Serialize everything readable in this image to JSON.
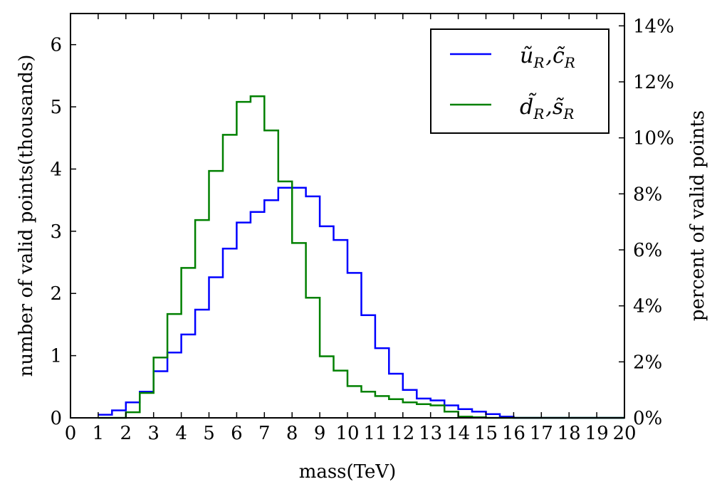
{
  "chart_data": {
    "type": "line",
    "style": "step-histogram",
    "title": "",
    "xlabel": "mass(TeV)",
    "ylabel": "number of valid points(thousands)",
    "ylabel_right": "percent of valid points",
    "xlim": [
      0,
      20
    ],
    "ylim": [
      0,
      6.5
    ],
    "ylim_right_percent": [
      0,
      14.44
    ],
    "x_ticks": [
      "0",
      "1",
      "2",
      "3",
      "4",
      "5",
      "6",
      "7",
      "8",
      "9",
      "10",
      "11",
      "12",
      "13",
      "14",
      "15",
      "16",
      "17",
      "18",
      "19",
      "20"
    ],
    "y_ticks": [
      "0",
      "1",
      "2",
      "3",
      "4",
      "5",
      "6"
    ],
    "y_ticks_right": [
      "0%",
      "2%",
      "4%",
      "6%",
      "8%",
      "10%",
      "12%",
      "14%"
    ],
    "grid": false,
    "legend_position": "top-right",
    "bin_edges": [
      1,
      1.5,
      2,
      2.5,
      3,
      3.5,
      4,
      4.5,
      5,
      5.5,
      6,
      6.5,
      7,
      7.5,
      8,
      8.5,
      9,
      9.5,
      10,
      10.5,
      11,
      11.5,
      12,
      12.5,
      13,
      13.5,
      14,
      14.5,
      15,
      15.5,
      16,
      16.5,
      17,
      17.5,
      18,
      18.5,
      19,
      19.5,
      20
    ],
    "series": [
      {
        "name": "ũR,c̃R",
        "legend_main": "ũ",
        "legend_sub": "R",
        "legend_sep": ",",
        "legend_main2": "c̃",
        "legend_sub2": "R",
        "color": "#0000ff",
        "values": [
          0.05,
          0.12,
          0.25,
          0.42,
          0.75,
          1.05,
          1.34,
          1.74,
          2.26,
          2.72,
          3.14,
          3.31,
          3.5,
          3.7,
          3.7,
          3.56,
          3.08,
          2.86,
          2.33,
          1.65,
          1.12,
          0.71,
          0.45,
          0.31,
          0.28,
          0.2,
          0.14,
          0.1,
          0.06,
          0.02,
          0,
          0,
          0,
          0,
          0,
          0,
          0,
          0
        ]
      },
      {
        "name": "d̃R,s̃R",
        "legend_main": "d̃",
        "legend_sub": "R",
        "legend_sep": ",",
        "legend_main2": "s̃",
        "legend_sub2": "R",
        "color": "#008000",
        "values": [
          0,
          0,
          0.09,
          0.4,
          0.97,
          1.67,
          2.41,
          3.18,
          3.97,
          4.55,
          5.08,
          5.17,
          4.62,
          3.8,
          2.81,
          1.93,
          0.99,
          0.76,
          0.51,
          0.42,
          0.35,
          0.3,
          0.25,
          0.22,
          0.2,
          0.1,
          0.02,
          0.01,
          0,
          0,
          0,
          0,
          0,
          0,
          0,
          0,
          0,
          0
        ]
      }
    ]
  }
}
